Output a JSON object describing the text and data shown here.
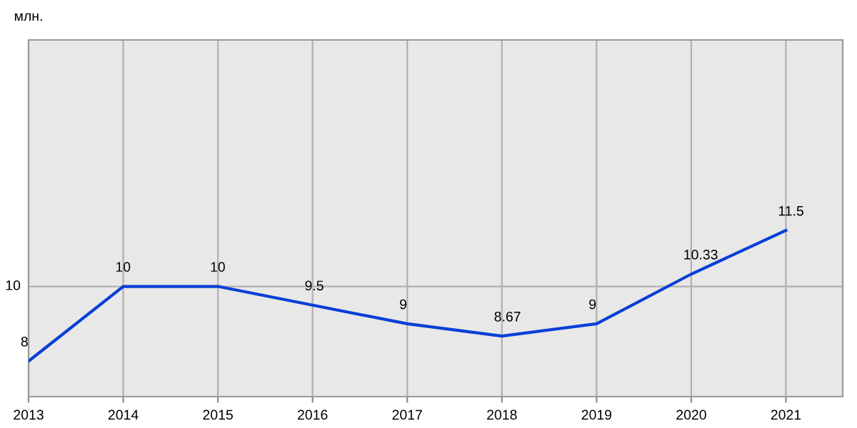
{
  "chart_data": {
    "type": "line",
    "ylabel": "млн.",
    "x": [
      2013,
      2014,
      2015,
      2016,
      2017,
      2018,
      2019,
      2020,
      2021
    ],
    "series": [
      {
        "color": "#0a3fd6",
        "values": [
          8,
          10,
          10,
          9.5,
          9,
          8.67,
          9,
          10.33,
          11.5
        ]
      }
    ],
    "xlim": [
      2013,
      2021.6
    ],
    "xticks": [
      2013,
      2014,
      2015,
      2016,
      2017,
      2018,
      2019,
      2020,
      2021
    ],
    "ylim": [
      7.05,
      16.6
    ],
    "ref_lines": [
      {
        "axis": "y",
        "value": 10,
        "label": "10",
        "color": "#b0b0b0"
      }
    ],
    "grid": "x",
    "data_labels": true,
    "marker": "none",
    "line_style": "solid"
  }
}
